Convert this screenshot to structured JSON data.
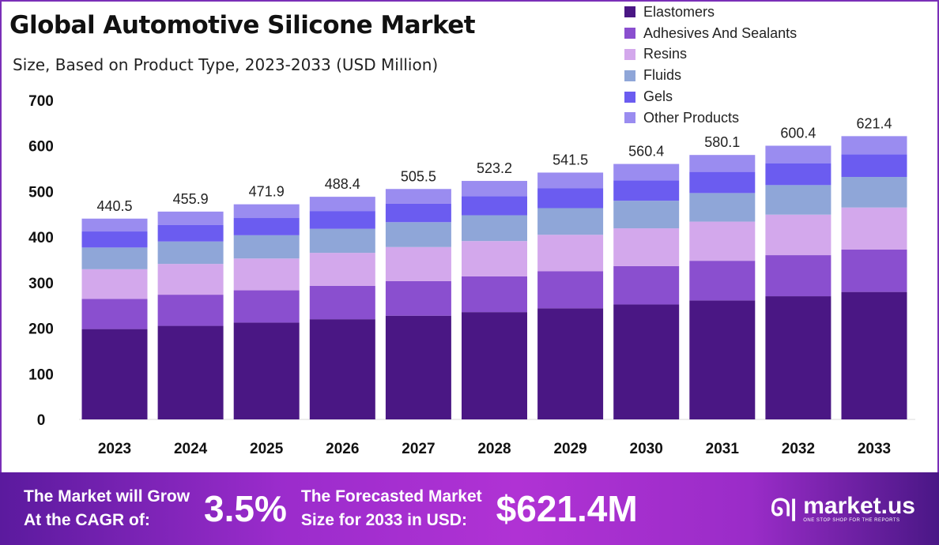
{
  "header": {
    "title": "Global Automotive Silicone Market",
    "subtitle": "Size, Based on Product Type, 2023-2033 (USD Million)"
  },
  "chart_data": {
    "type": "bar",
    "stacked": true,
    "title": "Global Automotive Silicone Market",
    "subtitle": "Size, Based on Product Type, 2023-2033 (USD Million)",
    "xlabel": "",
    "ylabel": "",
    "ylim": [
      0,
      700
    ],
    "yticks": [
      "0",
      "100",
      "200",
      "300",
      "400",
      "500",
      "600",
      "700"
    ],
    "ytick_values": [
      0,
      100,
      200,
      300,
      400,
      500,
      600,
      700
    ],
    "grid": false,
    "legend_position": "top-right",
    "categories": [
      "2023",
      "2024",
      "2025",
      "2026",
      "2027",
      "2028",
      "2029",
      "2030",
      "2031",
      "2032",
      "2033"
    ],
    "totals": [
      440.5,
      455.9,
      471.9,
      488.4,
      505.5,
      523.2,
      541.5,
      560.4,
      580.1,
      600.4,
      621.4
    ],
    "total_labels": [
      "440.5",
      "455.9",
      "471.9",
      "488.4",
      "505.5",
      "523.2",
      "541.5",
      "560.4",
      "580.1",
      "600.4",
      "621.4"
    ],
    "series": [
      {
        "name": "Elastomers",
        "color": "#4a1784",
        "values": [
          198.2,
          205.2,
          212.4,
          219.8,
          227.5,
          235.4,
          243.7,
          252.2,
          261.0,
          270.2,
          279.6
        ]
      },
      {
        "name": "Adhesives And Sealants",
        "color": "#8a4fcf",
        "values": [
          66.1,
          68.4,
          70.8,
          73.3,
          75.8,
          78.5,
          81.2,
          84.1,
          87.0,
          90.1,
          93.2
        ]
      },
      {
        "name": "Resins",
        "color": "#d3a8ec",
        "values": [
          65.2,
          67.5,
          69.8,
          72.3,
          74.8,
          77.4,
          80.1,
          82.9,
          85.9,
          88.9,
          92.0
        ]
      },
      {
        "name": "Fluids",
        "color": "#8fa6d8",
        "values": [
          47.6,
          49.2,
          51.0,
          52.7,
          54.6,
          56.5,
          58.5,
          60.5,
          62.7,
          64.8,
          67.1
        ]
      },
      {
        "name": "Gels",
        "color": "#6b5cf0",
        "values": [
          35.2,
          36.5,
          37.8,
          39.1,
          40.4,
          41.9,
          43.3,
          44.8,
          46.4,
          48.0,
          49.7
        ]
      },
      {
        "name": "Other Products",
        "color": "#9a8cf0",
        "values": [
          28.2,
          29.1,
          30.1,
          31.2,
          32.4,
          33.5,
          34.7,
          35.9,
          37.1,
          38.4,
          39.8
        ]
      }
    ]
  },
  "banner": {
    "cagr_text_line1": "The Market will Grow",
    "cagr_text_line2": "At the CAGR of:",
    "cagr_value": "3.5%",
    "forecast_text_line1": "The Forecasted Market",
    "forecast_text_line2": "Size for 2033 in USD:",
    "forecast_value": "$621.4M",
    "logo_text": "market.us",
    "logo_tagline": "ONE STOP SHOP FOR THE REPORTS"
  }
}
